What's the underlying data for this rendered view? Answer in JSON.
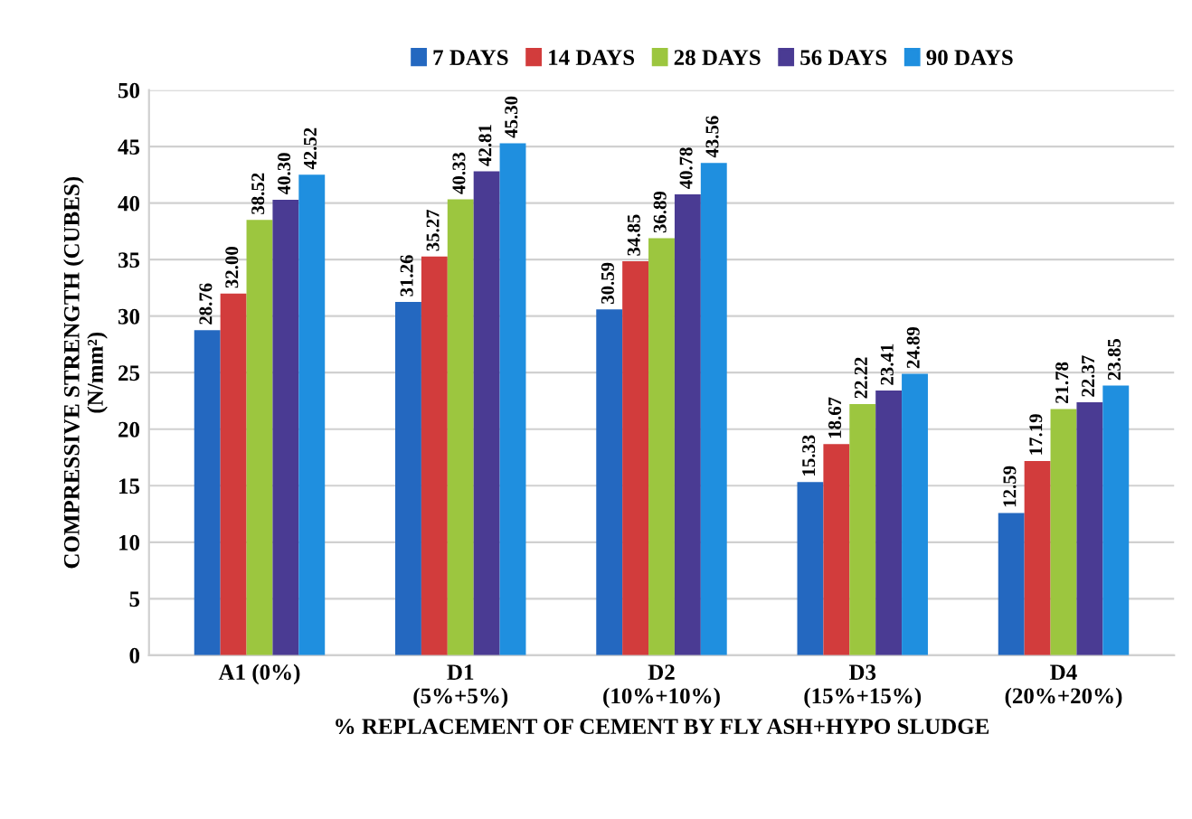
{
  "chart_data": {
    "type": "bar",
    "categories": [
      "A1 (0%)",
      "D1\n(5%+5%)",
      "D2\n(10%+10%)",
      "D3\n(15%+15%)",
      "D4\n(20%+20%)"
    ],
    "series": [
      {
        "name": "7 DAYS",
        "color": "#2468c0",
        "values": [
          28.76,
          31.26,
          30.59,
          15.33,
          12.59
        ],
        "value_labels": [
          "28.76",
          "31.26",
          "30.59",
          "15.33",
          "12.59"
        ]
      },
      {
        "name": "14 DAYS",
        "color": "#d23c3c",
        "values": [
          32.0,
          35.27,
          34.85,
          18.67,
          17.19
        ],
        "value_labels": [
          "32.00",
          "35.27",
          "34.85",
          "18.67",
          "17.19"
        ]
      },
      {
        "name": "28 DAYS",
        "color": "#9cc63f",
        "values": [
          38.52,
          40.33,
          36.89,
          22.22,
          21.78
        ],
        "value_labels": [
          "38.52",
          "40.33",
          "36.89",
          "22.22",
          "21.78"
        ]
      },
      {
        "name": "56 DAYS",
        "color": "#4a3b93",
        "values": [
          40.3,
          42.81,
          40.78,
          23.41,
          22.37
        ],
        "value_labels": [
          "40.30",
          "42.81",
          "40.78",
          "23.41",
          "22.37"
        ]
      },
      {
        "name": "90 DAYS",
        "color": "#1f8fdf",
        "values": [
          42.52,
          45.3,
          43.56,
          24.89,
          23.85
        ],
        "value_labels": [
          "42.52",
          "45.30",
          "43.56",
          "24.89",
          "23.85"
        ]
      }
    ],
    "xlabel": "% REPLACEMENT OF CEMENT BY FLY ASH+HYPO SLUDGE",
    "ylabel": "COMPRESSIVE STRENGTH (CUBES)\n(N/mm²)",
    "ylim": [
      0,
      50
    ],
    "yticks": [
      0,
      5,
      10,
      15,
      20,
      25,
      30,
      35,
      40,
      45,
      50
    ],
    "grid": "y",
    "legend": "top"
  }
}
